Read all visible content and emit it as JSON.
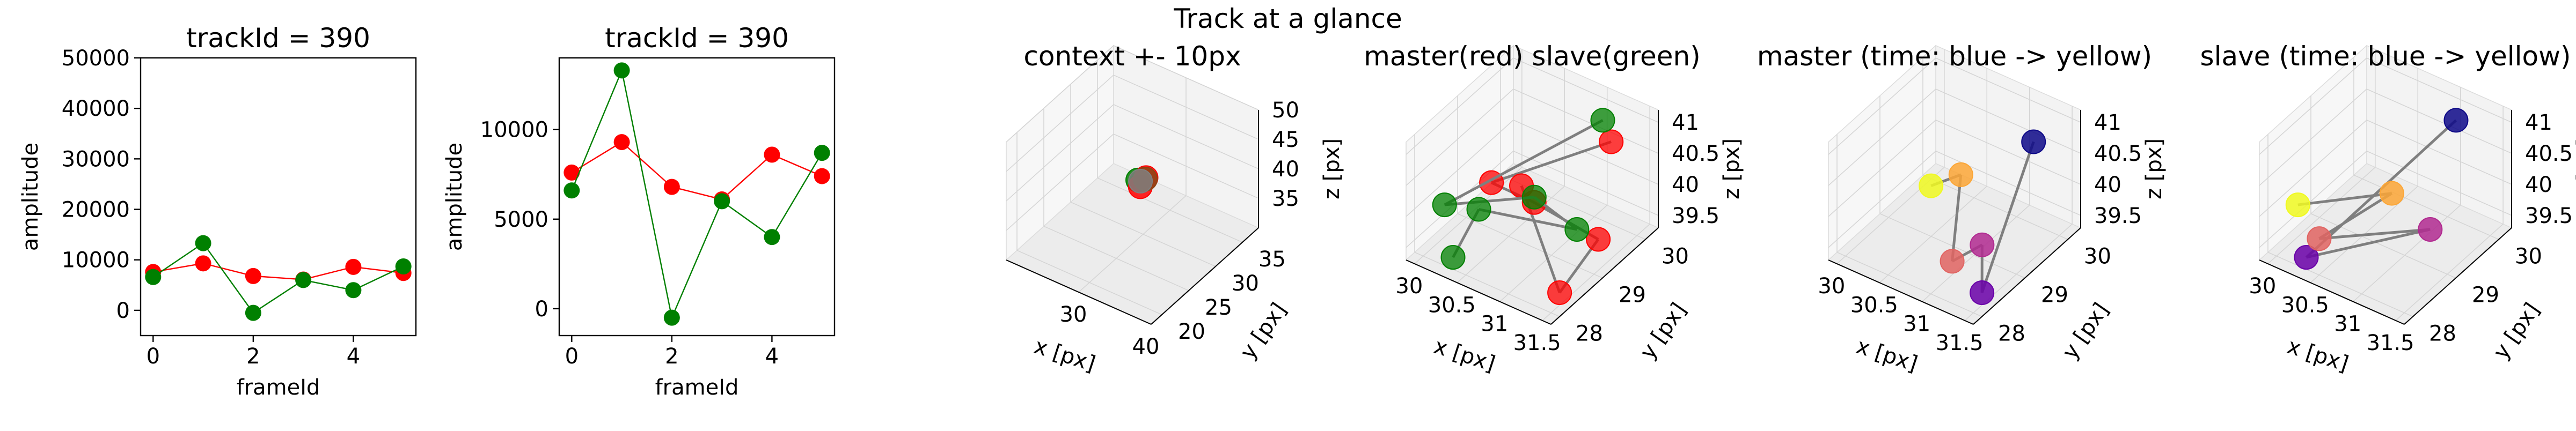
{
  "suptitle": "Track at a glance",
  "chart_data": [
    {
      "type": "line",
      "title": "trackId = 390",
      "xlabel": "frameId",
      "ylabel": "amplitude",
      "xlim": [
        -0.25,
        5.25
      ],
      "ylim": [
        -5000,
        50000
      ],
      "xticks": [
        0,
        2,
        4
      ],
      "yticks": [
        0,
        10000,
        20000,
        30000,
        40000,
        50000
      ],
      "x": [
        0,
        1,
        2,
        3,
        4,
        5
      ],
      "series": [
        {
          "color": "#ff0000",
          "values": [
            7600,
            9300,
            6800,
            6100,
            8600,
            7400
          ]
        },
        {
          "color": "#008000",
          "values": [
            6600,
            13300,
            -500,
            6000,
            4000,
            8700
          ]
        }
      ]
    },
    {
      "type": "line",
      "title": "trackId = 390",
      "xlabel": "frameId",
      "ylabel": "amplitude",
      "xlim": [
        -0.25,
        5.25
      ],
      "ylim": [
        -1500,
        14000
      ],
      "xticks": [
        0,
        2,
        4
      ],
      "yticks": [
        0,
        5000,
        10000
      ],
      "x": [
        0,
        1,
        2,
        3,
        4,
        5
      ],
      "series": [
        {
          "color": "#ff0000",
          "values": [
            7600,
            9300,
            6800,
            6100,
            8600,
            7400
          ]
        },
        {
          "color": "#008000",
          "values": [
            6600,
            13300,
            -500,
            6000,
            4000,
            8700
          ]
        }
      ]
    },
    {
      "type": "scatter",
      "projection": "3d",
      "title": "context +- 10px",
      "xlabel": "x [px]",
      "ylabel": "y [px]",
      "zlabel": "z [px]",
      "xlim": [
        20,
        40
      ],
      "ylim": [
        18,
        38
      ],
      "zlim": [
        30,
        50
      ],
      "xticks": [
        30,
        40
      ],
      "yticks": [
        20,
        25,
        30,
        35
      ],
      "zticks": [
        35,
        40,
        45,
        50
      ],
      "points": [
        {
          "x": 30.3,
          "y": 28.6,
          "z": 40.5,
          "color": "#008000"
        },
        {
          "x": 30.5,
          "y": 28.9,
          "z": 40.2,
          "color": "#008000"
        },
        {
          "x": 30.8,
          "y": 28.4,
          "z": 39.8,
          "color": "#ff0000"
        },
        {
          "x": 31.0,
          "y": 29.2,
          "z": 40.8,
          "color": "#ff0000"
        },
        {
          "x": 31.2,
          "y": 28.8,
          "z": 41.0,
          "color": "#8b4513"
        },
        {
          "x": 30.6,
          "y": 28.7,
          "z": 40.4,
          "color": "#808080"
        }
      ]
    },
    {
      "type": "scatter",
      "projection": "3d",
      "title": "master(red) slave(green)",
      "xlabel": "x [px]",
      "ylabel": "y [px]",
      "zlabel": "z [px]",
      "xlim": [
        29.9,
        31.6
      ],
      "ylim": [
        27.8,
        30.3
      ],
      "zlim": [
        39.3,
        41.2
      ],
      "xticks": [
        30.0,
        30.5,
        31.0,
        31.5
      ],
      "yticks": [
        28,
        29,
        30
      ],
      "zticks": [
        39.5,
        40.0,
        40.5,
        41.0
      ],
      "series": [
        {
          "name": "master",
          "color": "#ff0000",
          "points": [
            [
              31.4,
              29.6,
              41.0
            ],
            [
              30.6,
              28.4,
              40.6
            ],
            [
              31.0,
              28.6,
              40.4
            ],
            [
              31.5,
              29.1,
              39.8
            ],
            [
              31.5,
              28.2,
              39.5
            ],
            [
              30.7,
              28.9,
              40.3
            ]
          ]
        },
        {
          "name": "slave",
          "color": "#008000",
          "points": [
            [
              31.2,
              29.8,
              41.1
            ],
            [
              30.1,
              28.3,
              40.0
            ],
            [
              30.9,
              28.8,
              40.3
            ],
            [
              31.3,
              29.0,
              39.9
            ],
            [
              30.3,
              28.7,
              39.8
            ],
            [
              30.3,
              28.1,
              39.4
            ]
          ]
        }
      ]
    },
    {
      "type": "scatter",
      "projection": "3d",
      "title": "master (time: blue -> yellow)",
      "xlabel": "x [px]",
      "ylabel": "y [px]",
      "zlabel": "z [px]",
      "xlim": [
        29.9,
        31.6
      ],
      "ylim": [
        27.8,
        30.3
      ],
      "zlim": [
        39.3,
        41.2
      ],
      "xticks": [
        30.0,
        30.5,
        31.0,
        31.5
      ],
      "yticks": [
        28,
        29,
        30
      ],
      "zticks": [
        39.5,
        40.0,
        40.5,
        41.0
      ],
      "colormap": [
        "#0d0887",
        "#6a00a8",
        "#b12a90",
        "#e16462",
        "#fca636",
        "#f0f921"
      ],
      "points": [
        [
          31.4,
          29.6,
          41.0
        ],
        [
          31.5,
          28.2,
          39.5
        ],
        [
          31.3,
          28.6,
          39.9
        ],
        [
          31.1,
          28.3,
          39.7
        ],
        [
          30.9,
          28.9,
          40.6
        ],
        [
          30.6,
          28.8,
          40.3
        ]
      ]
    },
    {
      "type": "scatter",
      "projection": "3d",
      "title": "slave (time: blue -> yellow)",
      "xlabel": "x [px]",
      "ylabel": "y [px]",
      "zlabel": "z [px]",
      "xlim": [
        29.9,
        31.6
      ],
      "ylim": [
        27.8,
        30.3
      ],
      "zlim": [
        39.3,
        41.2
      ],
      "xticks": [
        30.0,
        30.5,
        31.0,
        31.5
      ],
      "yticks": [
        28,
        29,
        30
      ],
      "zticks": [
        39.5,
        40.0,
        40.5,
        41.0
      ],
      "colormap": [
        "#0d0887",
        "#6a00a8",
        "#b12a90",
        "#e16462",
        "#fca636",
        "#f0f921"
      ],
      "points": [
        [
          31.2,
          29.8,
          41.1
        ],
        [
          30.3,
          28.1,
          39.4
        ],
        [
          31.3,
          29.0,
          39.9
        ],
        [
          30.4,
          28.2,
          39.7
        ],
        [
          30.9,
          28.9,
          40.3
        ],
        [
          30.1,
          28.3,
          40.0
        ]
      ]
    }
  ]
}
